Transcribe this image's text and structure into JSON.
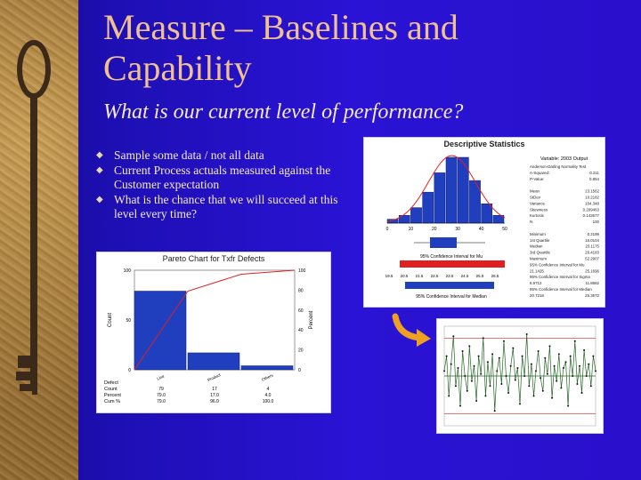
{
  "slide": {
    "title": "Measure – Baselines and Capability",
    "subtitle": "What is our current level of performance?",
    "bullets": [
      "Sample some data / not all data",
      "Current Process actuals measured against the Customer expectation",
      "What is the chance that we will succeed at this level every time?"
    ],
    "bullet_icon": "diamond-bullet-icon"
  },
  "descriptive_stats": {
    "title": "Descriptive Statistics",
    "variable": "Variable: 2003 Output",
    "hist_bins": [
      1,
      2,
      4,
      8,
      13,
      17,
      17,
      11,
      5,
      2
    ],
    "x_ticks": [
      "0",
      "10",
      "20",
      "30",
      "40",
      "50"
    ],
    "ci_mu_label": "95% Confidence Interval for Mu",
    "ci_median_label": "95% Confidence Interval for Median",
    "median_ticks": [
      "19.5",
      "20.5",
      "21.5",
      "22.5",
      "23.5",
      "24.5",
      "25.5",
      "26.5"
    ],
    "stats": [
      [
        "Anderson-Darling Normality Test",
        ""
      ],
      [
        "A-Squared:",
        "0.211"
      ],
      [
        "P-Value:",
        "0.854"
      ],
      [
        "",
        ""
      ],
      [
        "Mean",
        "23.1562"
      ],
      [
        "StDev",
        "10.2182"
      ],
      [
        "Variance",
        "104.348"
      ],
      [
        "Skewness",
        "0.209463"
      ],
      [
        "Kurtosis",
        "0.142677"
      ],
      [
        "N",
        "100"
      ],
      [
        "",
        ""
      ],
      [
        "Minimum",
        "0.2199"
      ],
      [
        "1st Quartile",
        "16.0104"
      ],
      [
        "Median",
        "23.1175"
      ],
      [
        "3rd Quartile",
        "29.4183"
      ],
      [
        "Maximum",
        "52.2907"
      ],
      [
        "95% Confidence Interval for Mu",
        ""
      ],
      [
        "21.1425",
        "25.1696"
      ],
      [
        "95% Confidence Interval for Sigma",
        ""
      ],
      [
        "8.9712",
        "11.8682"
      ],
      [
        "95% Confidence Interval for Median",
        ""
      ],
      [
        "20.7218",
        "25.3572"
      ]
    ]
  },
  "pareto": {
    "title": "Pareto Chart for Txfr Defects",
    "ylabel_left": "Count",
    "ylabel_right": "Percent",
    "left_ticks": [
      "0",
      "50",
      "100"
    ],
    "right_ticks": [
      "0",
      "20",
      "40",
      "60",
      "80",
      "100"
    ],
    "categories": [
      "Line",
      "Product",
      "Others"
    ],
    "counts": [
      79,
      17,
      4
    ],
    "cum_percent": [
      79.0,
      96.0,
      100.0
    ],
    "row_labels": [
      "Defect",
      "Count",
      "Percent",
      "Cum %"
    ],
    "count_row": [
      "79",
      "17",
      "4"
    ],
    "percent_row": [
      "79.0",
      "17.0",
      "4.0"
    ],
    "cum_row": [
      "79.0",
      "96.0",
      "100.0"
    ],
    "bar_color": "#1f3fbf",
    "line_color": "#e02020"
  },
  "control": {
    "points": [
      0.55,
      0.7,
      0.3,
      0.62,
      0.9,
      0.4,
      0.58,
      0.2,
      0.75,
      0.5,
      0.35,
      0.8,
      0.45,
      0.6,
      0.25,
      0.7,
      0.52,
      0.88,
      0.3,
      0.64,
      0.4,
      0.72,
      0.15,
      0.55,
      0.68,
      0.42,
      0.85,
      0.5,
      0.33,
      0.6,
      0.78,
      0.46,
      0.58,
      0.22,
      0.7,
      0.5,
      0.92,
      0.4,
      0.62,
      0.3,
      0.55,
      0.75,
      0.48,
      0.35,
      0.68,
      0.52,
      0.8,
      0.28,
      0.6,
      0.45,
      0.72,
      0.38,
      0.58,
      0.64,
      0.2,
      0.7,
      0.5,
      0.85,
      0.42,
      0.6,
      0.33,
      0.76,
      0.5,
      0.62,
      0.4,
      0.7,
      0.55
    ],
    "line_color": "#e02020",
    "series_color": "#226622"
  },
  "arrow_icon": "curved-arrow-icon"
}
